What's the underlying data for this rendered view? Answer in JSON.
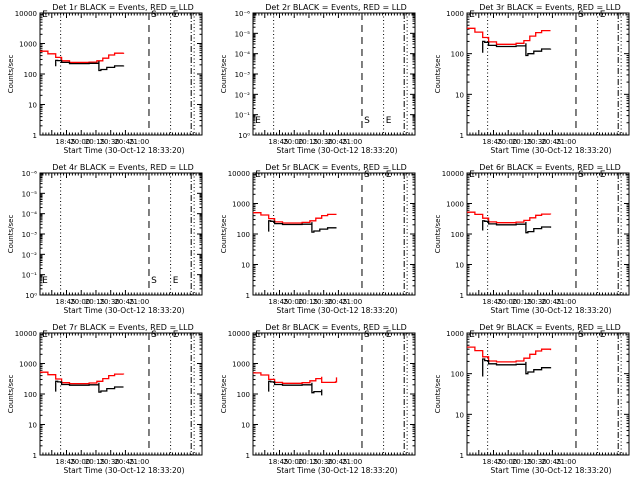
{
  "figure": {
    "rows": 3,
    "cols": 3,
    "xlabel": "Start Time (30-Oct-12 18:33:20)",
    "ylabel": "Counts/sec",
    "x_tick_labels": [
      "18:45",
      "20:00",
      "20:15",
      "20:30",
      "20:45",
      "21:00"
    ],
    "colors": {
      "events": "#000000",
      "lld": "#ff0000",
      "axes": "#000000"
    }
  },
  "chart_data": [
    {
      "type": "line",
      "title": "Det 1r BLACK = Events, RED = LLD",
      "xlabel": "Start Time (30-Oct-12 18:33:20)",
      "ylabel": "Counts/sec",
      "yscale": "log",
      "ylim": [
        1,
        10000
      ],
      "y_tick_labels": [
        "1",
        "10",
        "100",
        "1000",
        "10000"
      ],
      "xlim_minutes": [
        0,
        165
      ],
      "x_tick_labels": [
        "18:45",
        "20:00",
        "20:15",
        "20:30",
        "20:45",
        "21:00"
      ],
      "x_tick_minutes": [
        11.7,
        26.7,
        41.7,
        56.7,
        71.7,
        86.7
      ],
      "markers": [
        {
          "style": "dotted",
          "x": 21,
          "label": ""
        },
        {
          "style": "dashed",
          "x": 111,
          "label": "S"
        },
        {
          "style": "dotted",
          "x": 133,
          "label": "E"
        },
        {
          "style": "dashdot",
          "x": 154,
          "label": ""
        },
        {
          "style": "dotted",
          "x": 157,
          "label": ""
        }
      ],
      "corner_label": "E",
      "series": [
        {
          "name": "LLD",
          "color": "#ff0000",
          "x": [
            0,
            8,
            16,
            22,
            30,
            40,
            50,
            58,
            64,
            70,
            76,
            85
          ],
          "y": [
            560,
            460,
            350,
            270,
            240,
            240,
            245,
            270,
            330,
            420,
            480,
            500
          ]
        },
        {
          "name": "Events",
          "color": "#000000",
          "x": [
            16,
            16,
            18,
            22,
            30,
            40,
            50,
            60,
            60,
            62,
            68,
            76,
            85
          ],
          "y": [
            180,
            280,
            275,
            240,
            220,
            220,
            225,
            260,
            130,
            140,
            165,
            185,
            190
          ]
        }
      ]
    },
    {
      "type": "line",
      "title": "Det 2r BLACK = Events, RED = LLD",
      "xlabel": "Start Time (30-Oct-12 18:33:20)",
      "ylabel": "Counts/sec",
      "yscale": "log",
      "ylim": [
        1,
        1000000
      ],
      "y_tick_labels": [
        "10⁰",
        "10⁻¹",
        "10⁻²",
        "10⁻³",
        "10⁻⁴",
        "10⁻⁵",
        "10⁻⁶"
      ],
      "xlim_minutes": [
        0,
        165
      ],
      "x_tick_labels": [
        "18:45",
        "20:00",
        "20:15",
        "20:30",
        "20:45",
        "21:00"
      ],
      "x_tick_minutes": [
        11.7,
        26.7,
        41.7,
        56.7,
        71.7,
        86.7
      ],
      "markers": [
        {
          "style": "dotted",
          "x": 21,
          "label": ""
        },
        {
          "style": "dashed",
          "x": 111,
          "label": "S"
        },
        {
          "style": "dotted",
          "x": 133,
          "label": "E"
        },
        {
          "style": "dashdot",
          "x": 154,
          "label": ""
        },
        {
          "style": "dotted",
          "x": 157,
          "label": ""
        }
      ],
      "corner_label": "E",
      "bottom_labels": true,
      "series": []
    },
    {
      "type": "line",
      "title": "Det 3r BLACK = Events, RED = LLD",
      "xlabel": "Start Time (30-Oct-12 18:33:20)",
      "ylabel": "Counts/sec",
      "yscale": "log",
      "ylim": [
        1,
        1000
      ],
      "y_tick_labels": [
        "1",
        "10",
        "100",
        "1000"
      ],
      "xlim_minutes": [
        0,
        165
      ],
      "x_tick_labels": [
        "18:45",
        "20:00",
        "20:15",
        "20:30",
        "20:45",
        "21:00"
      ],
      "x_tick_minutes": [
        11.7,
        26.7,
        41.7,
        56.7,
        71.7,
        86.7
      ],
      "markers": [
        {
          "style": "dotted",
          "x": 21,
          "label": ""
        },
        {
          "style": "dashed",
          "x": 111,
          "label": "S"
        },
        {
          "style": "dotted",
          "x": 133,
          "label": "E"
        },
        {
          "style": "dashdot",
          "x": 154,
          "label": ""
        },
        {
          "style": "dotted",
          "x": 157,
          "label": ""
        }
      ],
      "corner_label": "E",
      "series": [
        {
          "name": "LLD",
          "color": "#ff0000",
          "x": [
            0,
            8,
            16,
            22,
            30,
            40,
            50,
            58,
            64,
            70,
            76,
            85
          ],
          "y": [
            420,
            340,
            250,
            195,
            170,
            170,
            180,
            210,
            270,
            330,
            370,
            370
          ]
        },
        {
          "name": "Events",
          "color": "#000000",
          "x": [
            16,
            16,
            18,
            22,
            30,
            40,
            50,
            60,
            60,
            62,
            68,
            76,
            85
          ],
          "y": [
            105,
            200,
            190,
            160,
            150,
            150,
            155,
            180,
            90,
            100,
            115,
            130,
            132
          ]
        }
      ]
    },
    {
      "type": "line",
      "title": "Det 4r BLACK = Events, RED = LLD",
      "xlabel": "Start Time (30-Oct-12 18:33:20)",
      "ylabel": "Counts/sec",
      "yscale": "log",
      "ylim": [
        1,
        1000000
      ],
      "y_tick_labels": [
        "10⁰",
        "10⁻¹",
        "10⁻²",
        "10⁻³",
        "10⁻⁴",
        "10⁻⁵",
        "10⁻⁶"
      ],
      "xlim_minutes": [
        0,
        165
      ],
      "x_tick_labels": [
        "18:45",
        "20:00",
        "20:15",
        "20:30",
        "20:45",
        "21:00"
      ],
      "x_tick_minutes": [
        11.7,
        26.7,
        41.7,
        56.7,
        71.7,
        86.7
      ],
      "markers": [
        {
          "style": "dotted",
          "x": 21,
          "label": ""
        },
        {
          "style": "dashed",
          "x": 111,
          "label": "S"
        },
        {
          "style": "dotted",
          "x": 133,
          "label": "E"
        },
        {
          "style": "dashdot",
          "x": 154,
          "label": ""
        },
        {
          "style": "dotted",
          "x": 157,
          "label": ""
        }
      ],
      "corner_label": "E",
      "bottom_labels": true,
      "series": []
    },
    {
      "type": "line",
      "title": "Det 5r BLACK = Events, RED = LLD",
      "xlabel": "Start Time (30-Oct-12 18:33:20)",
      "ylabel": "Counts/sec",
      "yscale": "log",
      "ylim": [
        1,
        10000
      ],
      "y_tick_labels": [
        "1",
        "10",
        "100",
        "1000",
        "10000"
      ],
      "xlim_minutes": [
        0,
        165
      ],
      "x_tick_labels": [
        "18:45",
        "20:00",
        "20:15",
        "20:30",
        "20:45",
        "21:00"
      ],
      "x_tick_minutes": [
        11.7,
        26.7,
        41.7,
        56.7,
        71.7,
        86.7
      ],
      "markers": [
        {
          "style": "dotted",
          "x": 21,
          "label": ""
        },
        {
          "style": "dashed",
          "x": 111,
          "label": "S"
        },
        {
          "style": "dotted",
          "x": 133,
          "label": "E"
        },
        {
          "style": "dashdot",
          "x": 154,
          "label": ""
        },
        {
          "style": "dotted",
          "x": 157,
          "label": ""
        }
      ],
      "corner_label": "E",
      "series": [
        {
          "name": "LLD",
          "color": "#ff0000",
          "x": [
            0,
            8,
            16,
            22,
            30,
            40,
            50,
            58,
            64,
            70,
            76,
            85
          ],
          "y": [
            500,
            420,
            320,
            250,
            230,
            230,
            240,
            270,
            330,
            400,
            440,
            440
          ]
        },
        {
          "name": "Events",
          "color": "#000000",
          "x": [
            16,
            16,
            18,
            22,
            30,
            40,
            50,
            60,
            60,
            62,
            68,
            76,
            85
          ],
          "y": [
            120,
            270,
            260,
            220,
            205,
            205,
            210,
            245,
            115,
            125,
            145,
            160,
            160
          ]
        }
      ]
    },
    {
      "type": "line",
      "title": "Det 6r BLACK = Events, RED = LLD",
      "xlabel": "Start Time (30-Oct-12 18:33:20)",
      "ylabel": "Counts/sec",
      "yscale": "log",
      "ylim": [
        1,
        10000
      ],
      "y_tick_labels": [
        "1",
        "10",
        "100",
        "1000",
        "10000"
      ],
      "xlim_minutes": [
        0,
        165
      ],
      "x_tick_labels": [
        "18:45",
        "20:00",
        "20:15",
        "20:30",
        "20:45",
        "21:00"
      ],
      "x_tick_minutes": [
        11.7,
        26.7,
        41.7,
        56.7,
        71.7,
        86.7
      ],
      "markers": [
        {
          "style": "dotted",
          "x": 21,
          "label": ""
        },
        {
          "style": "dashed",
          "x": 111,
          "label": "S"
        },
        {
          "style": "dotted",
          "x": 133,
          "label": "E"
        },
        {
          "style": "dashdot",
          "x": 154,
          "label": ""
        },
        {
          "style": "dotted",
          "x": 157,
          "label": ""
        }
      ],
      "corner_label": "E",
      "series": [
        {
          "name": "LLD",
          "color": "#ff0000",
          "x": [
            0,
            8,
            16,
            22,
            30,
            40,
            50,
            58,
            64,
            70,
            76,
            85
          ],
          "y": [
            520,
            440,
            330,
            250,
            235,
            235,
            245,
            280,
            340,
            410,
            450,
            440
          ]
        },
        {
          "name": "Events",
          "color": "#000000",
          "x": [
            16,
            16,
            18,
            22,
            30,
            40,
            50,
            60,
            60,
            62,
            68,
            76,
            85
          ],
          "y": [
            130,
            270,
            260,
            215,
            200,
            200,
            210,
            250,
            110,
            120,
            150,
            170,
            160
          ]
        }
      ]
    },
    {
      "type": "line",
      "title": "Det 7r BLACK = Events, RED = LLD",
      "xlabel": "Start Time (30-Oct-12 18:33:20)",
      "ylabel": "Counts/sec",
      "yscale": "log",
      "ylim": [
        1,
        10000
      ],
      "y_tick_labels": [
        "1",
        "10",
        "100",
        "1000",
        "10000"
      ],
      "xlim_minutes": [
        0,
        165
      ],
      "x_tick_labels": [
        "18:45",
        "20:00",
        "20:15",
        "20:30",
        "20:45",
        "21:00"
      ],
      "x_tick_minutes": [
        11.7,
        26.7,
        41.7,
        56.7,
        71.7,
        86.7
      ],
      "markers": [
        {
          "style": "dotted",
          "x": 21,
          "label": ""
        },
        {
          "style": "dashed",
          "x": 111,
          "label": "S"
        },
        {
          "style": "dotted",
          "x": 133,
          "label": "E"
        },
        {
          "style": "dashdot",
          "x": 154,
          "label": ""
        },
        {
          "style": "dotted",
          "x": 157,
          "label": ""
        }
      ],
      "corner_label": "E",
      "series": [
        {
          "name": "LLD",
          "color": "#ff0000",
          "x": [
            0,
            8,
            16,
            22,
            30,
            40,
            50,
            58,
            64,
            70,
            76,
            85
          ],
          "y": [
            520,
            430,
            310,
            235,
            220,
            220,
            230,
            260,
            320,
            400,
            450,
            440
          ]
        },
        {
          "name": "Events",
          "color": "#000000",
          "x": [
            16,
            16,
            18,
            22,
            30,
            40,
            50,
            60,
            60,
            62,
            68,
            76,
            85
          ],
          "y": [
            120,
            260,
            250,
            205,
            195,
            195,
            200,
            235,
            115,
            125,
            150,
            170,
            170
          ]
        }
      ]
    },
    {
      "type": "line",
      "title": "Det 8r BLACK = Events, RED = LLD",
      "xlabel": "Start Time (30-Oct-12 18:33:20)",
      "ylabel": "Counts/sec",
      "yscale": "log",
      "ylim": [
        1,
        10000
      ],
      "y_tick_labels": [
        "1",
        "10",
        "100",
        "1000",
        "10000"
      ],
      "xlim_minutes": [
        0,
        165
      ],
      "x_tick_labels": [
        "18:45",
        "20:00",
        "20:15",
        "20:30",
        "20:45",
        "21:00"
      ],
      "x_tick_minutes": [
        11.7,
        26.7,
        41.7,
        56.7,
        71.7,
        86.7
      ],
      "markers": [
        {
          "style": "dotted",
          "x": 21,
          "label": ""
        },
        {
          "style": "dashed",
          "x": 111,
          "label": "S"
        },
        {
          "style": "dotted",
          "x": 133,
          "label": "E"
        },
        {
          "style": "dashdot",
          "x": 154,
          "label": ""
        },
        {
          "style": "dotted",
          "x": 157,
          "label": ""
        }
      ],
      "corner_label": "E",
      "series": [
        {
          "name": "LLD",
          "color": "#ff0000",
          "x": [
            0,
            8,
            16,
            22,
            30,
            40,
            50,
            58,
            64,
            70,
            70,
            84,
            85
          ],
          "y": [
            490,
            420,
            300,
            240,
            225,
            225,
            235,
            270,
            320,
            370,
            240,
            250,
            350
          ]
        },
        {
          "name": "Events",
          "color": "#000000",
          "x": [
            16,
            16,
            18,
            22,
            30,
            40,
            50,
            60,
            60,
            62,
            70,
            70
          ],
          "y": [
            120,
            260,
            250,
            205,
            195,
            195,
            200,
            235,
            110,
            120,
            140,
            90
          ]
        }
      ]
    },
    {
      "type": "line",
      "title": "Det 9r BLACK = Events, RED = LLD",
      "xlabel": "Start Time (30-Oct-12 18:33:20)",
      "ylabel": "Counts/sec",
      "yscale": "log",
      "ylim": [
        1,
        1000
      ],
      "y_tick_labels": [
        "1",
        "10",
        "100",
        "1000"
      ],
      "xlim_minutes": [
        0,
        165
      ],
      "x_tick_labels": [
        "18:45",
        "20:00",
        "20:15",
        "20:30",
        "20:45",
        "21:00"
      ],
      "x_tick_minutes": [
        11.7,
        26.7,
        41.7,
        56.7,
        71.7,
        86.7
      ],
      "markers": [
        {
          "style": "dotted",
          "x": 21,
          "label": ""
        },
        {
          "style": "dashed",
          "x": 111,
          "label": "S"
        },
        {
          "style": "dotted",
          "x": 133,
          "label": "E"
        },
        {
          "style": "dashdot",
          "x": 154,
          "label": ""
        },
        {
          "style": "dotted",
          "x": 157,
          "label": ""
        }
      ],
      "corner_label": "E",
      "series": [
        {
          "name": "LLD",
          "color": "#ff0000",
          "x": [
            0,
            8,
            16,
            22,
            30,
            40,
            50,
            58,
            64,
            70,
            76,
            85
          ],
          "y": [
            450,
            370,
            260,
            205,
            195,
            195,
            205,
            240,
            300,
            360,
            400,
            380
          ]
        },
        {
          "name": "Events",
          "color": "#000000",
          "x": [
            16,
            16,
            18,
            22,
            30,
            40,
            50,
            60,
            60,
            62,
            68,
            76,
            85
          ],
          "y": [
            85,
            230,
            210,
            175,
            165,
            165,
            170,
            195,
            100,
            110,
            125,
            140,
            145
          ]
        }
      ]
    }
  ]
}
